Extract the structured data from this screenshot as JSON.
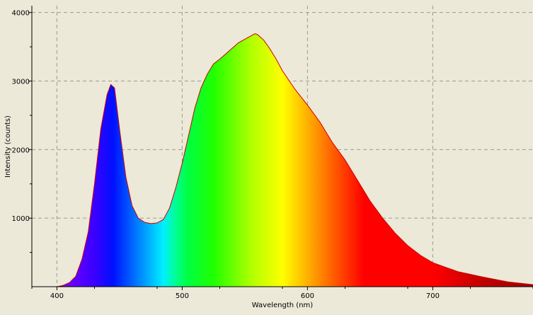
{
  "chart_data": {
    "type": "area",
    "title": "",
    "xlabel": "Wavelength (nm)",
    "ylabel": "Intensity (counts)",
    "xlim": [
      380,
      780
    ],
    "ylim": [
      0,
      4100
    ],
    "x_ticks": [
      400,
      500,
      600,
      700
    ],
    "y_ticks": [
      1000,
      2000,
      3000,
      4000
    ],
    "x_tick_labels": [
      "400",
      "500",
      "600",
      "700"
    ],
    "y_tick_labels": [
      "1000",
      "2000",
      "3000",
      "4000"
    ],
    "grid": true,
    "legend": "none",
    "fill": "visible-spectrum color gradient",
    "line_color": "#cc0000",
    "series": [
      {
        "x": [
          380,
          400,
          405,
          410,
          415,
          420,
          425,
          430,
          435,
          440,
          443,
          446,
          450,
          455,
          460,
          465,
          470,
          475,
          480,
          485,
          490,
          495,
          500,
          505,
          510,
          515,
          520,
          525,
          530,
          535,
          540,
          545,
          550,
          555,
          558,
          560,
          565,
          570,
          575,
          580,
          590,
          600,
          610,
          620,
          630,
          640,
          650,
          660,
          670,
          680,
          690,
          700,
          720,
          740,
          760,
          780
        ],
        "y": [
          0,
          0,
          20,
          60,
          150,
          400,
          800,
          1500,
          2300,
          2800,
          2950,
          2900,
          2300,
          1600,
          1180,
          1000,
          940,
          920,
          930,
          980,
          1150,
          1450,
          1800,
          2200,
          2600,
          2900,
          3100,
          3250,
          3320,
          3400,
          3480,
          3560,
          3610,
          3660,
          3690,
          3680,
          3600,
          3470,
          3320,
          3150,
          2880,
          2650,
          2400,
          2100,
          1850,
          1550,
          1250,
          1000,
          780,
          600,
          460,
          350,
          220,
          140,
          70,
          30
        ]
      }
    ]
  }
}
